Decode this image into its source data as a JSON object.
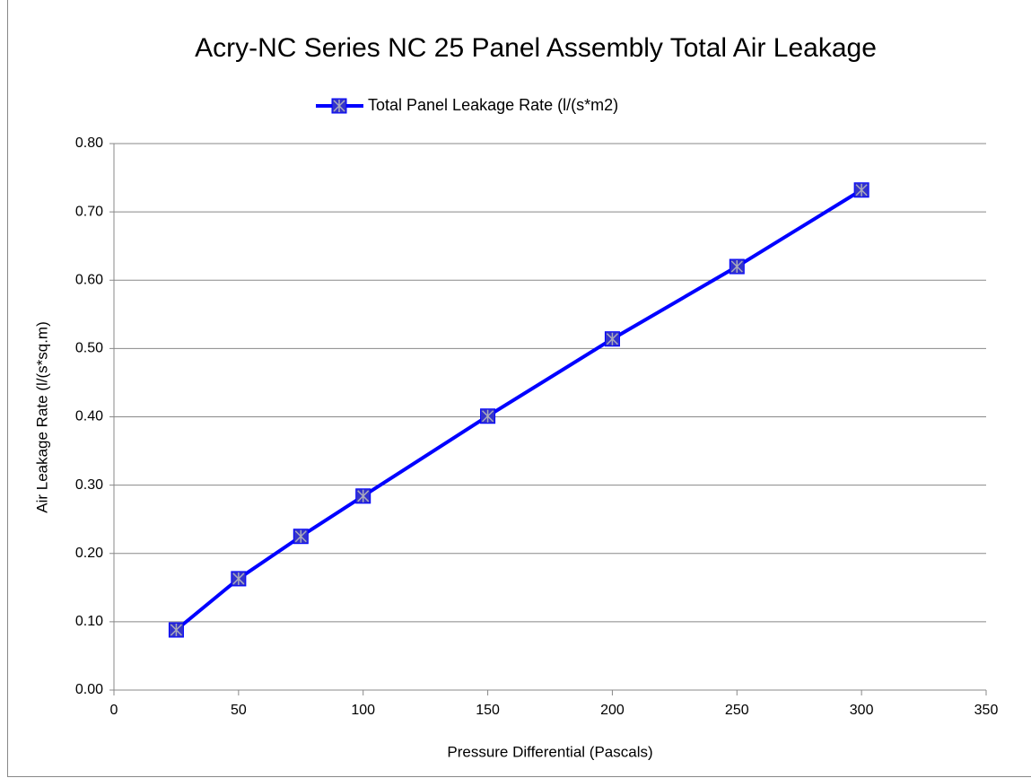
{
  "chart_data": {
    "type": "line",
    "title": "Acry-NC Series NC 25 Panel Assembly Total Air Leakage",
    "x_label": "Pressure Differential (Pascals)",
    "y_label": "Air Leakage Rate (l/(s*sq.m)",
    "x": [
      25,
      50,
      75,
      100,
      150,
      200,
      250,
      300
    ],
    "series": [
      {
        "name": "Total Panel Leakage Rate (l/(s*m2)",
        "color": "#0000ff",
        "marker_color": "#3333cc",
        "values": [
          0.088,
          0.163,
          0.225,
          0.284,
          0.401,
          0.514,
          0.62,
          0.732
        ]
      }
    ],
    "xlim": [
      0,
      350
    ],
    "xticks": [
      0,
      50,
      100,
      150,
      200,
      250,
      300,
      350
    ],
    "ylim": [
      0,
      0.8
    ],
    "yticks": [
      {
        "value": 0,
        "label": "0.00"
      },
      {
        "value": 0.1,
        "label": "0.10"
      },
      {
        "value": 0.2,
        "label": "0.20"
      },
      {
        "value": 0.3,
        "label": "0.30"
      },
      {
        "value": 0.4,
        "label": "0.40"
      },
      {
        "value": 0.5,
        "label": "0.50"
      },
      {
        "value": 0.6,
        "label": "0.60"
      },
      {
        "value": 0.7,
        "label": "0.70"
      },
      {
        "value": 0.8,
        "label": "0.80"
      }
    ],
    "grid": true,
    "legend": "top"
  }
}
